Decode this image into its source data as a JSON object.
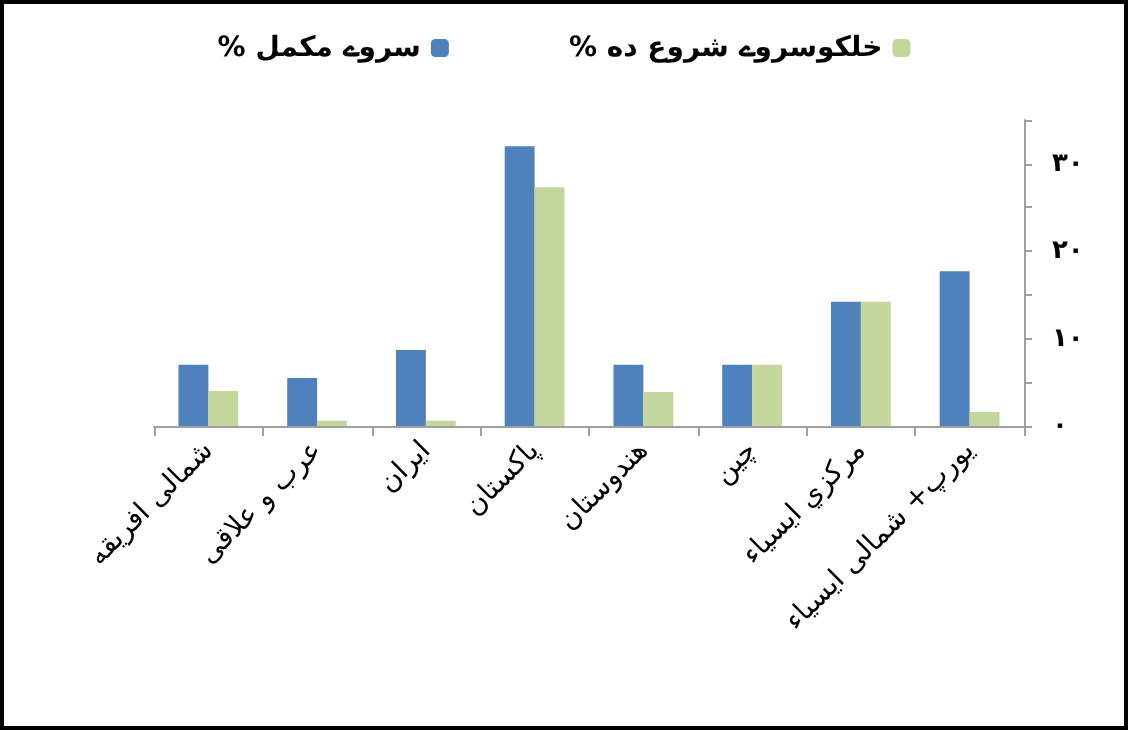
{
  "chart_data": {
    "type": "bar",
    "categories": [
      "شمالی افریقه",
      "عرب و علاقی",
      "ایران",
      "پاکستان",
      "هندوستان",
      "چین",
      "مرکزي ایسیاء",
      "یورپ+ شمالی ایسیاء"
    ],
    "series": [
      {
        "name": "% سروے مکمل",
        "color": "#4f81bd",
        "values": [
          7,
          5.5,
          8.7,
          32,
          7,
          7,
          14.2,
          17.7
        ]
      },
      {
        "name": "% خلکوسروے شروع ده",
        "color": "#c3d69b",
        "values": [
          4,
          0.6,
          0.6,
          27.3,
          3.9,
          7,
          14.2,
          1.6
        ]
      }
    ],
    "ylim": [
      0,
      35
    ],
    "yticks": [
      {
        "value": 0,
        "label": "٠"
      },
      {
        "value": 5,
        "label": null
      },
      {
        "value": 10,
        "label": "١٠"
      },
      {
        "value": 15,
        "label": null
      },
      {
        "value": 20,
        "label": "٢٠"
      },
      {
        "value": 25,
        "label": null
      },
      {
        "value": 30,
        "label": "٣٠"
      },
      {
        "value": 35,
        "label": null
      }
    ],
    "grid": false,
    "legend": "top"
  }
}
